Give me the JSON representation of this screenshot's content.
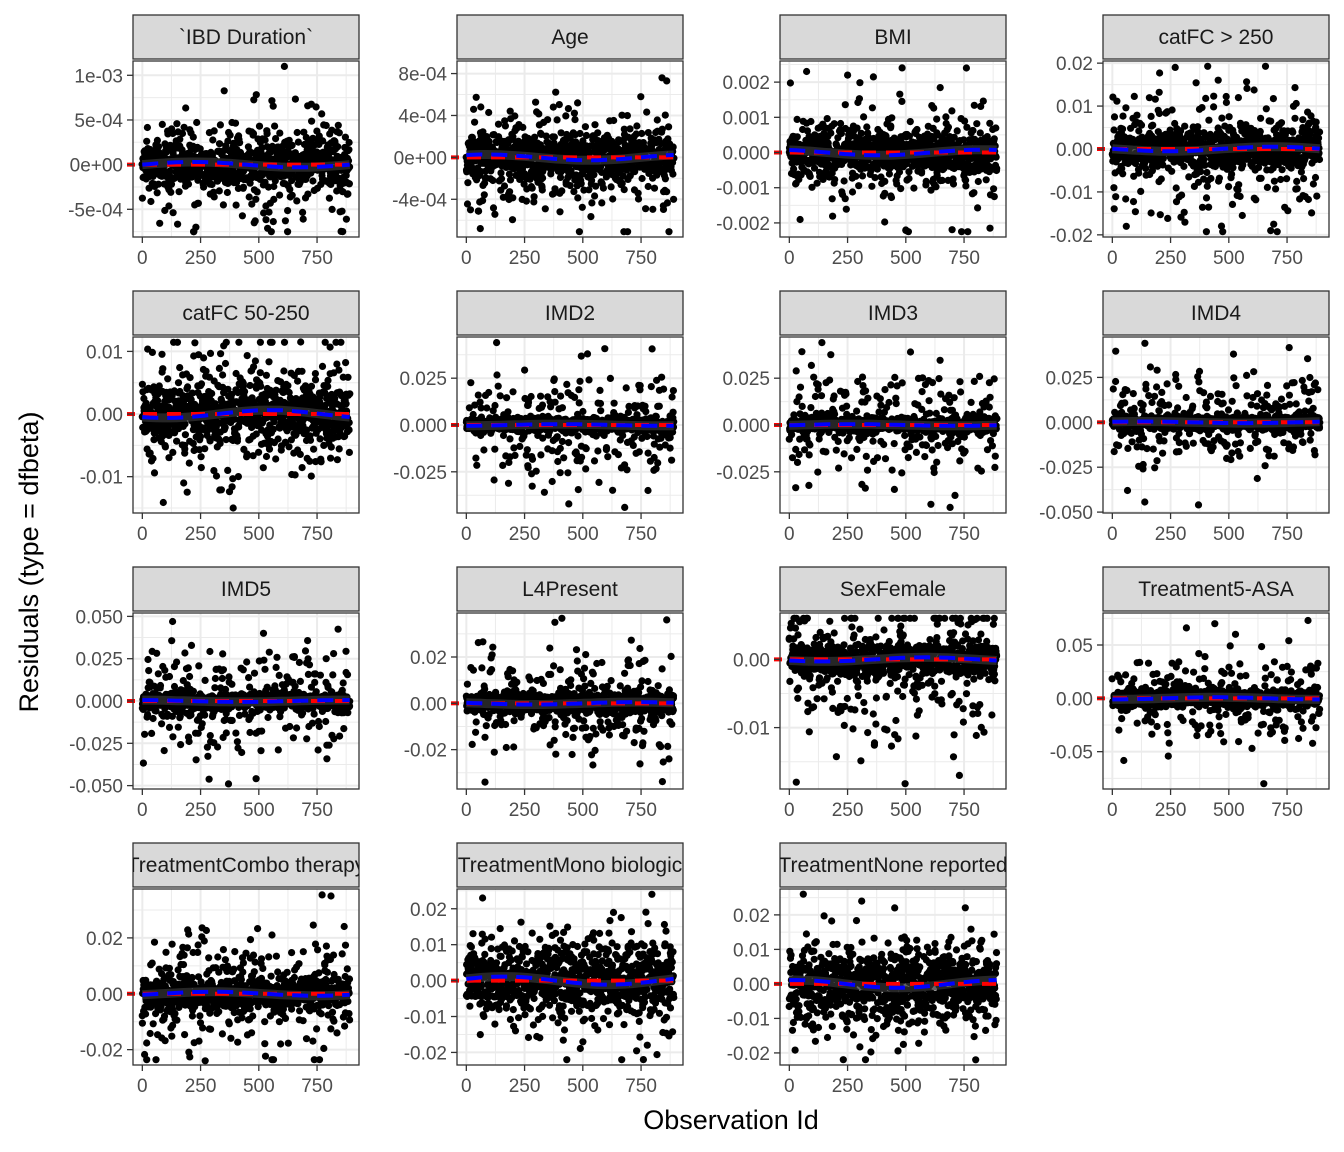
{
  "chart_data": {
    "type": "scatter",
    "xlabel": "Observation Id",
    "ylabel": "Residuals (type = dfbeta)",
    "x_range": [
      0,
      890
    ],
    "x_ticks": [
      0,
      250,
      500,
      750
    ],
    "x_tick_labels": [
      "0",
      "250",
      "500",
      "750"
    ],
    "n_observations": 890,
    "layers": [
      "points",
      "zero-reference-line",
      "smoothed-trend"
    ],
    "colors": {
      "points": "#000000",
      "zero_reference": "#ff0000",
      "smooth_trend": "#0000ff",
      "smooth_band": "#333333",
      "strip_fill": "#d9d9d9",
      "grid": "#ebebeb"
    },
    "grid": true,
    "panels": [
      {
        "label": "`IBD Duration`",
        "ylim": [
          -0.00081,
          0.00116
        ],
        "y_ticks": [
          -0.0005,
          0,
          0.0005,
          0.001
        ],
        "y_tick_labels": [
          "-5e-04",
          "0e+00",
          "5e-04",
          "1e-03"
        ],
        "core_sd": 0.00012,
        "spread_sd": 0.00032,
        "notable_points": [
          {
            "x": 610,
            "y": 0.0011
          },
          {
            "x": 860,
            "y": -0.00075
          },
          {
            "x": 230,
            "y": -0.0007
          }
        ]
      },
      {
        "label": "Age",
        "ylim": [
          -0.00076,
          0.00092
        ],
        "y_ticks": [
          -0.0004,
          0,
          0.0004,
          0.0008
        ],
        "y_tick_labels": [
          "-4e-04",
          "0e+00",
          "4e-04",
          "8e-04"
        ],
        "core_sd": 0.00011,
        "spread_sd": 0.0003,
        "notable_points": [
          {
            "x": 840,
            "y": 0.00076
          },
          {
            "x": 860,
            "y": 0.00073
          },
          {
            "x": 60,
            "y": -0.00068
          }
        ]
      },
      {
        "label": "BMI",
        "ylim": [
          -0.0024,
          0.0026
        ],
        "y_ticks": [
          -0.002,
          -0.001,
          0,
          0.001,
          0.002
        ],
        "y_tick_labels": [
          "-0.002",
          "-0.001",
          "0.000",
          "0.001",
          "0.002"
        ],
        "core_sd": 0.00032,
        "spread_sd": 0.0008,
        "notable_points": [
          {
            "x": 760,
            "y": 0.0024
          },
          {
            "x": 500,
            "y": -0.0022
          },
          {
            "x": 250,
            "y": 0.0022
          }
        ]
      },
      {
        "label": "catFC > 250",
        "ylim": [
          -0.0205,
          0.0205
        ],
        "y_ticks": [
          -0.02,
          -0.01,
          0,
          0.01,
          0.02
        ],
        "y_tick_labels": [
          "-0.02",
          "-0.01",
          "0.00",
          "0.01",
          "0.02"
        ],
        "core_sd": 0.0021,
        "spread_sd": 0.0075,
        "notable_points": [
          {
            "x": 270,
            "y": 0.019
          },
          {
            "x": 680,
            "y": -0.019
          },
          {
            "x": 60,
            "y": -0.018
          }
        ]
      },
      {
        "label": "catFC 50-250",
        "ylim": [
          -0.0158,
          0.0123
        ],
        "y_ticks": [
          -0.01,
          0,
          0.01
        ],
        "y_tick_labels": [
          "-0.01",
          "0.00",
          "0.01"
        ],
        "core_sd": 0.0025,
        "spread_sd": 0.0058,
        "notable_points": [
          {
            "x": 390,
            "y": -0.015
          },
          {
            "x": 680,
            "y": 0.0115
          }
        ]
      },
      {
        "label": "IMD2",
        "ylim": [
          -0.047,
          0.047
        ],
        "y_ticks": [
          -0.025,
          0,
          0.025
        ],
        "y_tick_labels": [
          "-0.025",
          "0.000",
          "0.025"
        ],
        "core_sd": 0.0018,
        "spread_sd": 0.014,
        "notable_points": [
          {
            "x": 130,
            "y": 0.044
          },
          {
            "x": 680,
            "y": -0.044
          },
          {
            "x": 520,
            "y": 0.038
          }
        ]
      },
      {
        "label": "IMD3",
        "ylim": [
          -0.047,
          0.047
        ],
        "y_ticks": [
          -0.025,
          0,
          0.025
        ],
        "y_tick_labels": [
          "-0.025",
          "0.000",
          "0.025"
        ],
        "core_sd": 0.0018,
        "spread_sd": 0.014,
        "notable_points": [
          {
            "x": 140,
            "y": 0.044
          },
          {
            "x": 520,
            "y": 0.039
          },
          {
            "x": 690,
            "y": -0.044
          }
        ]
      },
      {
        "label": "IMD4",
        "ylim": [
          -0.0505,
          0.0475
        ],
        "y_ticks": [
          -0.05,
          -0.025,
          0,
          0.025
        ],
        "y_tick_labels": [
          "-0.050",
          "-0.025",
          "0.000",
          "0.025"
        ],
        "core_sd": 0.0018,
        "spread_sd": 0.014,
        "notable_points": [
          {
            "x": 140,
            "y": 0.044
          },
          {
            "x": 520,
            "y": 0.038
          },
          {
            "x": 370,
            "y": -0.046
          }
        ]
      },
      {
        "label": "IMD5",
        "ylim": [
          -0.052,
          0.052
        ],
        "y_ticks": [
          -0.05,
          -0.025,
          0,
          0.025,
          0.05
        ],
        "y_tick_labels": [
          "-0.050",
          "-0.025",
          "0.000",
          "0.025",
          "0.050"
        ],
        "core_sd": 0.0022,
        "spread_sd": 0.015,
        "notable_points": [
          {
            "x": 130,
            "y": 0.047
          },
          {
            "x": 370,
            "y": -0.049
          },
          {
            "x": 520,
            "y": 0.04
          }
        ]
      },
      {
        "label": "L4Present",
        "ylim": [
          -0.037,
          0.039
        ],
        "y_ticks": [
          -0.02,
          0,
          0.02
        ],
        "y_tick_labels": [
          "-0.02",
          "0.00",
          "0.02"
        ],
        "core_sd": 0.0021,
        "spread_sd": 0.0115,
        "notable_points": [
          {
            "x": 860,
            "y": 0.036
          },
          {
            "x": 80,
            "y": -0.034
          },
          {
            "x": 380,
            "y": 0.035
          }
        ]
      },
      {
        "label": "SexFemale",
        "ylim": [
          -0.019,
          0.0068
        ],
        "y_ticks": [
          -0.01,
          0
        ],
        "y_tick_labels": [
          "-0.01",
          "0.00"
        ],
        "core_sd": 0.0012,
        "spread_sd": 0.006,
        "notable_points": [
          {
            "x": 30,
            "y": -0.018
          },
          {
            "x": 730,
            "y": -0.017
          }
        ]
      },
      {
        "label": "Treatment5-ASA",
        "ylim": [
          -0.085,
          0.08
        ],
        "y_ticks": [
          -0.05,
          0,
          0.05
        ],
        "y_tick_labels": [
          "-0.05",
          "0.00",
          "0.05"
        ],
        "core_sd": 0.004,
        "spread_sd": 0.02,
        "notable_points": [
          {
            "x": 650,
            "y": -0.08
          },
          {
            "x": 840,
            "y": 0.073
          },
          {
            "x": 440,
            "y": 0.07
          }
        ]
      },
      {
        "label": "TreatmentCombo therapy",
        "ylim": [
          -0.0255,
          0.0375
        ],
        "y_ticks": [
          -0.02,
          0,
          0.02
        ],
        "y_tick_labels": [
          "-0.02",
          "0.00",
          "0.02"
        ],
        "core_sd": 0.0028,
        "spread_sd": 0.012,
        "notable_points": [
          {
            "x": 810,
            "y": 0.035
          },
          {
            "x": 270,
            "y": -0.024
          }
        ]
      },
      {
        "label": "TreatmentMono biologic",
        "ylim": [
          -0.0235,
          0.0255
        ],
        "y_ticks": [
          -0.02,
          -0.01,
          0,
          0.01,
          0.02
        ],
        "y_tick_labels": [
          "-0.02",
          "-0.01",
          "0.00",
          "0.01",
          "0.02"
        ],
        "core_sd": 0.0045,
        "spread_sd": 0.009,
        "notable_points": [
          {
            "x": 70,
            "y": 0.023
          },
          {
            "x": 760,
            "y": -0.022
          }
        ]
      },
      {
        "label": "TreatmentNone reported",
        "ylim": [
          -0.0235,
          0.0275
        ],
        "y_ticks": [
          -0.02,
          -0.01,
          0,
          0.01,
          0.02
        ],
        "y_tick_labels": [
          "-0.02",
          "-0.01",
          "0.00",
          "0.01",
          "0.02"
        ],
        "core_sd": 0.0045,
        "spread_sd": 0.009,
        "notable_points": [
          {
            "x": 60,
            "y": 0.026
          },
          {
            "x": 800,
            "y": -0.022
          }
        ]
      }
    ]
  }
}
